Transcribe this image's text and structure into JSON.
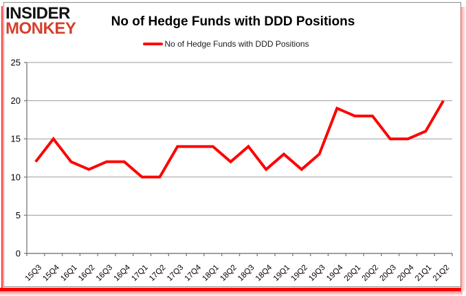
{
  "brand": {
    "line1": "INSIDER",
    "line2": "MONKEY",
    "red": "#d5402c"
  },
  "header": {
    "title": "No of Hedge Funds with DDD Positions"
  },
  "legend": {
    "label": "No of Hedge Funds with DDD Positions",
    "marker_color": "#fe0000"
  },
  "colors": {
    "grid": "#9a9a9a",
    "axis": "#808080",
    "tick": "#808080",
    "label_text": "#000000",
    "series_red": "#fe0000",
    "frame_border": "#8a8a8a",
    "accent_red": "#fb0007"
  },
  "chart_data": {
    "type": "line",
    "title": "No of Hedge Funds with DDD Positions",
    "categories": [
      "15Q3",
      "15Q4",
      "16Q1",
      "16Q2",
      "16Q3",
      "16Q4",
      "17Q1",
      "17Q2",
      "17Q3",
      "17Q4",
      "18Q1",
      "18Q2",
      "18Q3",
      "18Q4",
      "19Q1",
      "19Q2",
      "19Q3",
      "19Q4",
      "20Q1",
      "20Q2",
      "20Q3",
      "20Q4",
      "21Q1",
      "21Q2"
    ],
    "series": [
      {
        "name": "No of Hedge Funds with DDD Positions",
        "color": "#fe0000",
        "values": [
          12,
          15,
          12,
          11,
          12,
          12,
          10,
          10,
          14,
          14,
          14,
          12,
          14,
          11,
          13,
          11,
          13,
          19,
          18,
          18,
          15,
          15,
          16,
          20
        ]
      }
    ],
    "xlabel": "",
    "ylabel": "",
    "ylim": [
      0,
      25
    ],
    "yticks": [
      0,
      5,
      10,
      15,
      20,
      25
    ],
    "grid": true,
    "legend_position": "top-center",
    "x_label_rotation_deg": -45
  }
}
